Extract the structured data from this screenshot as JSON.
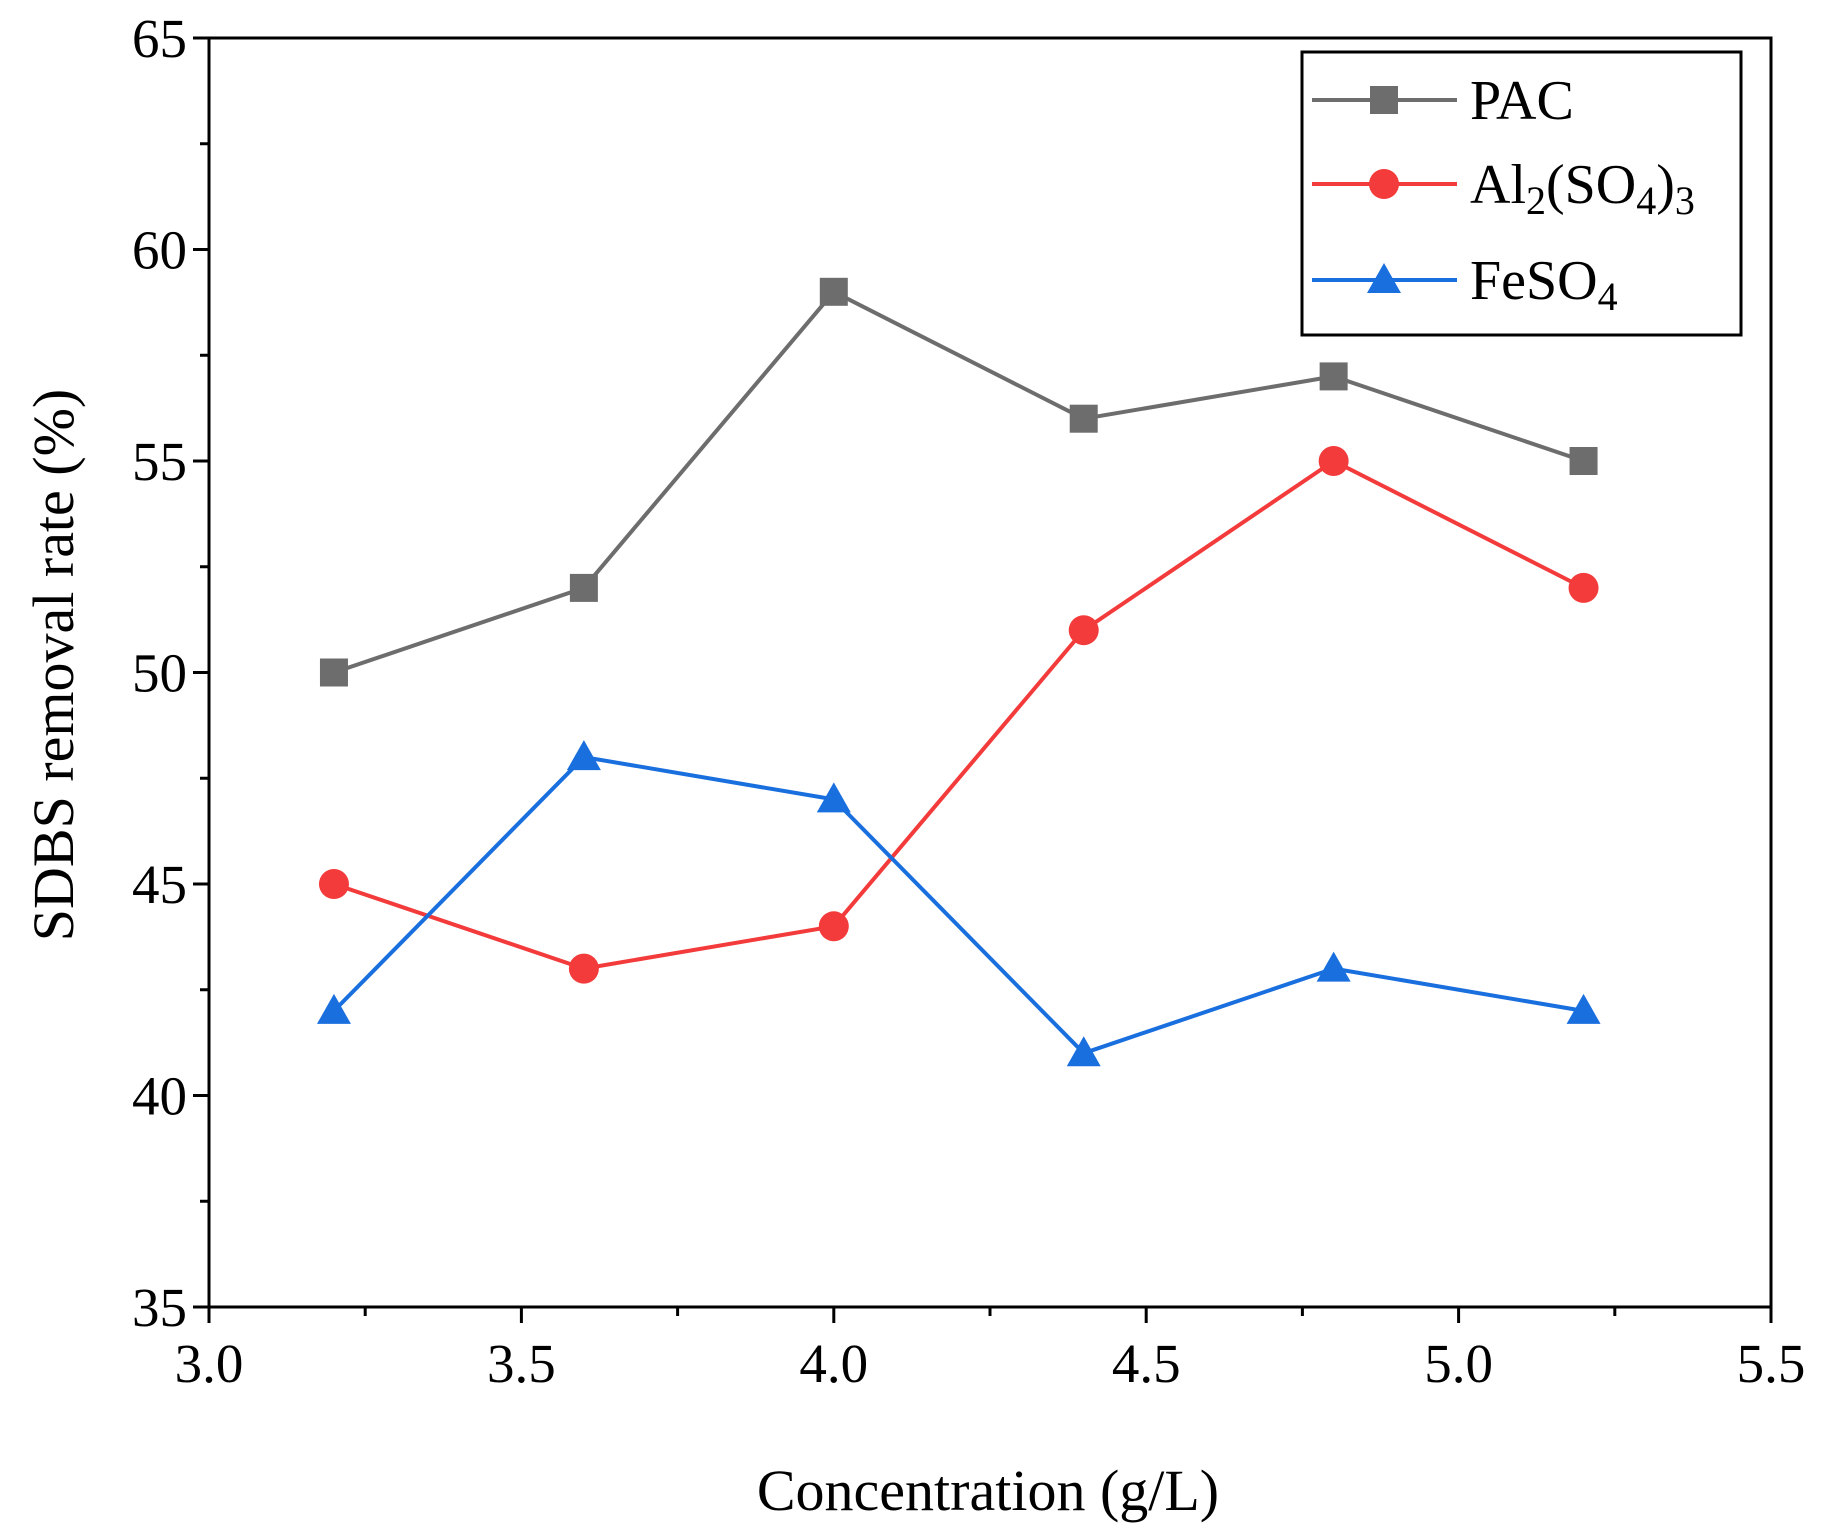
{
  "chart_data": {
    "type": "line",
    "title": "",
    "xlabel": "Concentration (g/L)",
    "ylabel": "SDBS removal rate (%)",
    "xlim": [
      3.0,
      5.5
    ],
    "ylim": [
      35,
      65
    ],
    "xticks": [
      3.0,
      3.5,
      4.0,
      4.5,
      5.0,
      5.5
    ],
    "xtick_labels": [
      "3.0",
      "3.5",
      "4.0",
      "4.5",
      "5.0",
      "5.5"
    ],
    "yticks": [
      35,
      40,
      45,
      50,
      55,
      60,
      65
    ],
    "ytick_labels": [
      "35",
      "40",
      "45",
      "50",
      "55",
      "60",
      "65"
    ],
    "grid": false,
    "legend_position": "top-right",
    "x": [
      3.2,
      3.6,
      4.0,
      4.4,
      4.8,
      5.2
    ],
    "series": [
      {
        "name": "PAC",
        "label_main": "PAC",
        "label_parts": [],
        "marker": "square",
        "color": "#6d6d6d",
        "values": [
          50,
          52,
          59,
          56,
          57,
          55
        ]
      },
      {
        "name": "Al2(SO4)3",
        "label_main": "Al",
        "label_parts": [
          {
            "text": "2",
            "sub": true
          },
          {
            "text": "(SO",
            "sub": false
          },
          {
            "text": "4",
            "sub": true
          },
          {
            "text": ")",
            "sub": false
          },
          {
            "text": "3",
            "sub": true
          }
        ],
        "marker": "circle",
        "color": "#f43b3b",
        "values": [
          45,
          43,
          44,
          51,
          55,
          52
        ]
      },
      {
        "name": "FeSO4",
        "label_main": "FeSO",
        "label_parts": [
          {
            "text": "4",
            "sub": true
          }
        ],
        "marker": "triangle",
        "color": "#1a6fdf",
        "values": [
          42,
          48,
          47,
          41,
          43,
          42
        ]
      }
    ]
  }
}
